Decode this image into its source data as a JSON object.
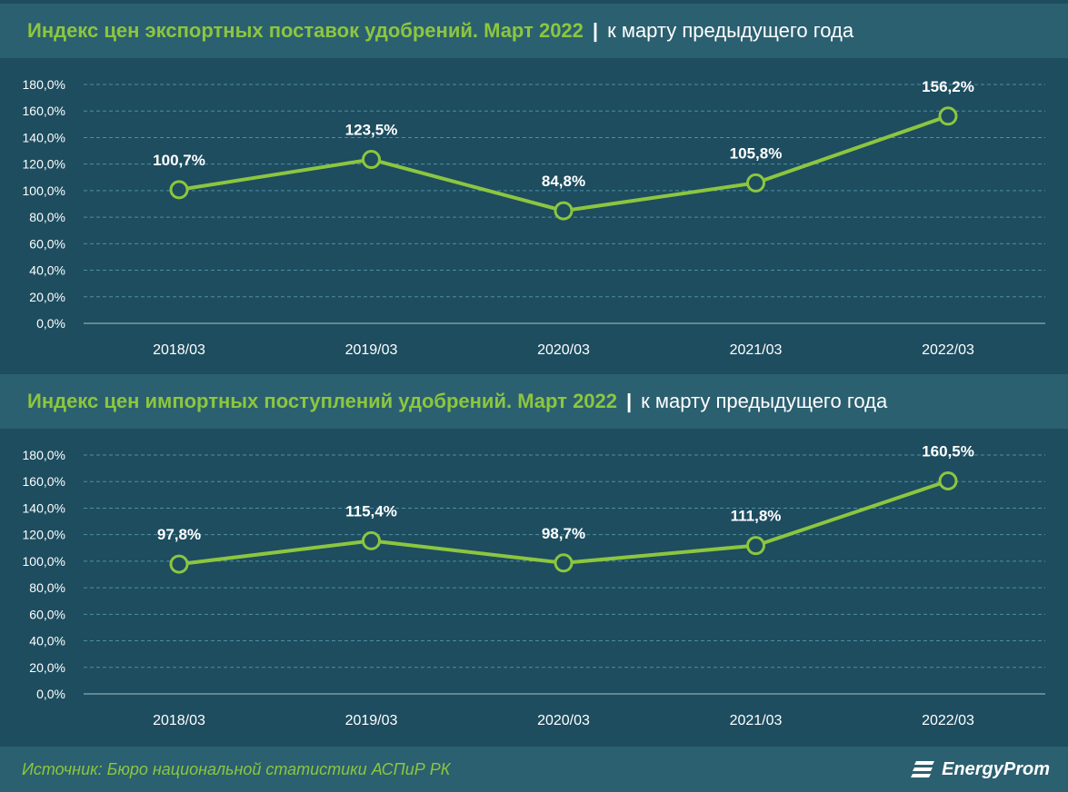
{
  "charts": [
    {
      "title_main": "Индекс цен экспортных поставок удобрений. Март 2022",
      "separator": "|",
      "title_sub": "к марту предыдущего года"
    },
    {
      "title_main": "Индекс цен импортных поступлений удобрений. Март 2022",
      "separator": "|",
      "title_sub": "к марту предыдущего года"
    }
  ],
  "chart_data": [
    {
      "type": "line",
      "title": "Индекс цен экспортных поставок удобрений. Март 2022 | к марту предыдущего года",
      "categories": [
        "2018/03",
        "2019/03",
        "2020/03",
        "2021/03",
        "2022/03"
      ],
      "values": [
        100.7,
        123.5,
        84.8,
        105.8,
        156.2
      ],
      "value_labels": [
        "100,7%",
        "123,5%",
        "84,8%",
        "105,8%",
        "156,2%"
      ],
      "y_ticks": [
        "0,0%",
        "20,0%",
        "40,0%",
        "60,0%",
        "80,0%",
        "100,0%",
        "120,0%",
        "140,0%",
        "160,0%",
        "180,0%"
      ],
      "ylim": [
        0,
        180
      ],
      "grid": true,
      "line_color": "#8cc63f"
    },
    {
      "type": "line",
      "title": "Индекс цен импортных поступлений удобрений. Март 2022 | к марту предыдущего года",
      "categories": [
        "2018/03",
        "2019/03",
        "2020/03",
        "2021/03",
        "2022/03"
      ],
      "values": [
        97.8,
        115.4,
        98.7,
        111.8,
        160.5
      ],
      "value_labels": [
        "97,8%",
        "115,4%",
        "98,7%",
        "111,8%",
        "160,5%"
      ],
      "y_ticks": [
        "0,0%",
        "20,0%",
        "40,0%",
        "60,0%",
        "80,0%",
        "100,0%",
        "120,0%",
        "140,0%",
        "160,0%",
        "180,0%"
      ],
      "ylim": [
        0,
        180
      ],
      "grid": true,
      "line_color": "#8cc63f"
    }
  ],
  "footer": {
    "source": "Источник: Бюро национальной статистики АСПиР РК",
    "logo_text": "EnergyProm"
  }
}
